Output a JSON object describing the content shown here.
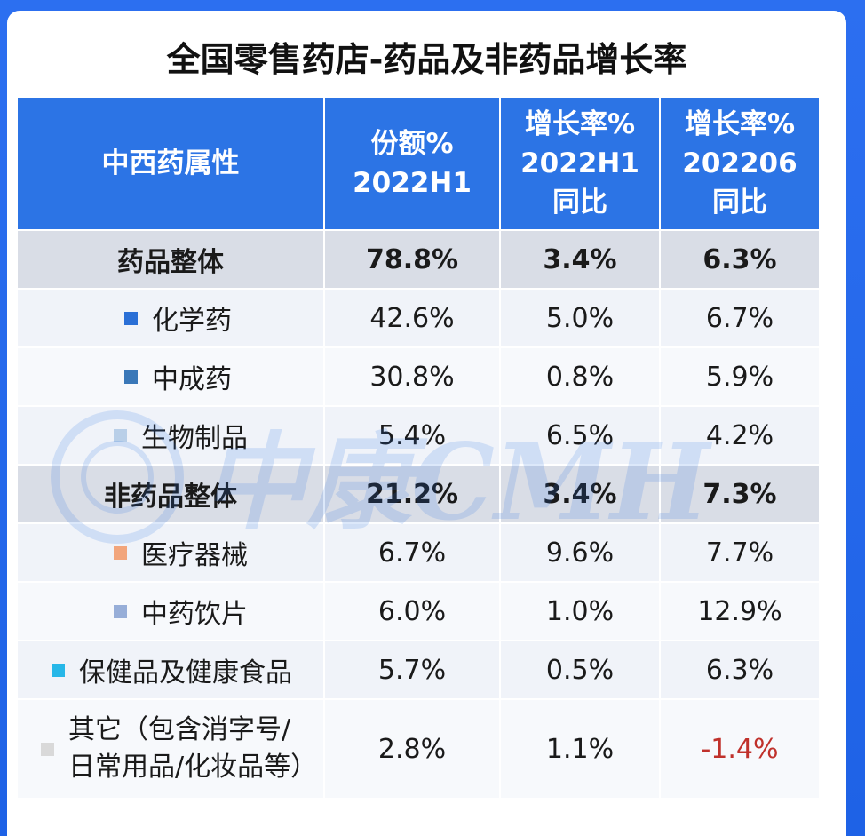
{
  "title": "全国零售药店-药品及非药品增长率",
  "watermark": "中康CMH",
  "chart_data": {
    "type": "table",
    "title": "全国零售药店-药品及非药品增长率",
    "columns": [
      {
        "line1": "中西药属性",
        "line2": "",
        "line3": ""
      },
      {
        "line1": "份额%",
        "line2": "2022H1",
        "line3": ""
      },
      {
        "line1": "增长率%",
        "line2": "2022H1",
        "line3": "同比"
      },
      {
        "line1": "增长率%",
        "line2": "202206",
        "line3": "同比"
      }
    ],
    "rows": [
      {
        "name": "药品整体",
        "name2": "",
        "share": "78.8%",
        "growth_h1": "3.4%",
        "growth_06": "6.3%",
        "group": true,
        "color": ""
      },
      {
        "name": "化学药",
        "name2": "",
        "share": "42.6%",
        "growth_h1": "5.0%",
        "growth_06": "6.7%",
        "group": false,
        "color": "#2a6fd6"
      },
      {
        "name": "中成药",
        "name2": "",
        "share": "30.8%",
        "growth_h1": "0.8%",
        "growth_06": "5.9%",
        "group": false,
        "color": "#3a78b8"
      },
      {
        "name": "生物制品",
        "name2": "",
        "share": "5.4%",
        "growth_h1": "6.5%",
        "growth_06": "4.2%",
        "group": false,
        "color": "#b9cfe8"
      },
      {
        "name": "非药品整体",
        "name2": "",
        "share": "21.2%",
        "growth_h1": "3.4%",
        "growth_06": "7.3%",
        "group": true,
        "color": ""
      },
      {
        "name": "医疗器械",
        "name2": "",
        "share": "6.7%",
        "growth_h1": "9.6%",
        "growth_06": "7.7%",
        "group": false,
        "color": "#f2a57c"
      },
      {
        "name": "中药饮片",
        "name2": "",
        "share": "6.0%",
        "growth_h1": "1.0%",
        "growth_06": "12.9%",
        "group": false,
        "color": "#97aed8"
      },
      {
        "name": "保健品及健康食品",
        "name2": "",
        "share": "5.7%",
        "growth_h1": "0.5%",
        "growth_06": "6.3%",
        "group": false,
        "color": "#27b7e8"
      },
      {
        "name": "其它（包含消字号/",
        "name2": "日常用品/化妆品等）",
        "share": "2.8%",
        "growth_h1": "1.1%",
        "growth_06": "-1.4%",
        "group": false,
        "color": "#d9d9d9"
      }
    ]
  },
  "colors": {
    "header_bg": "#2c74e5",
    "group_row_bg": "#d9dde6",
    "negative_text": "#c0312b"
  }
}
